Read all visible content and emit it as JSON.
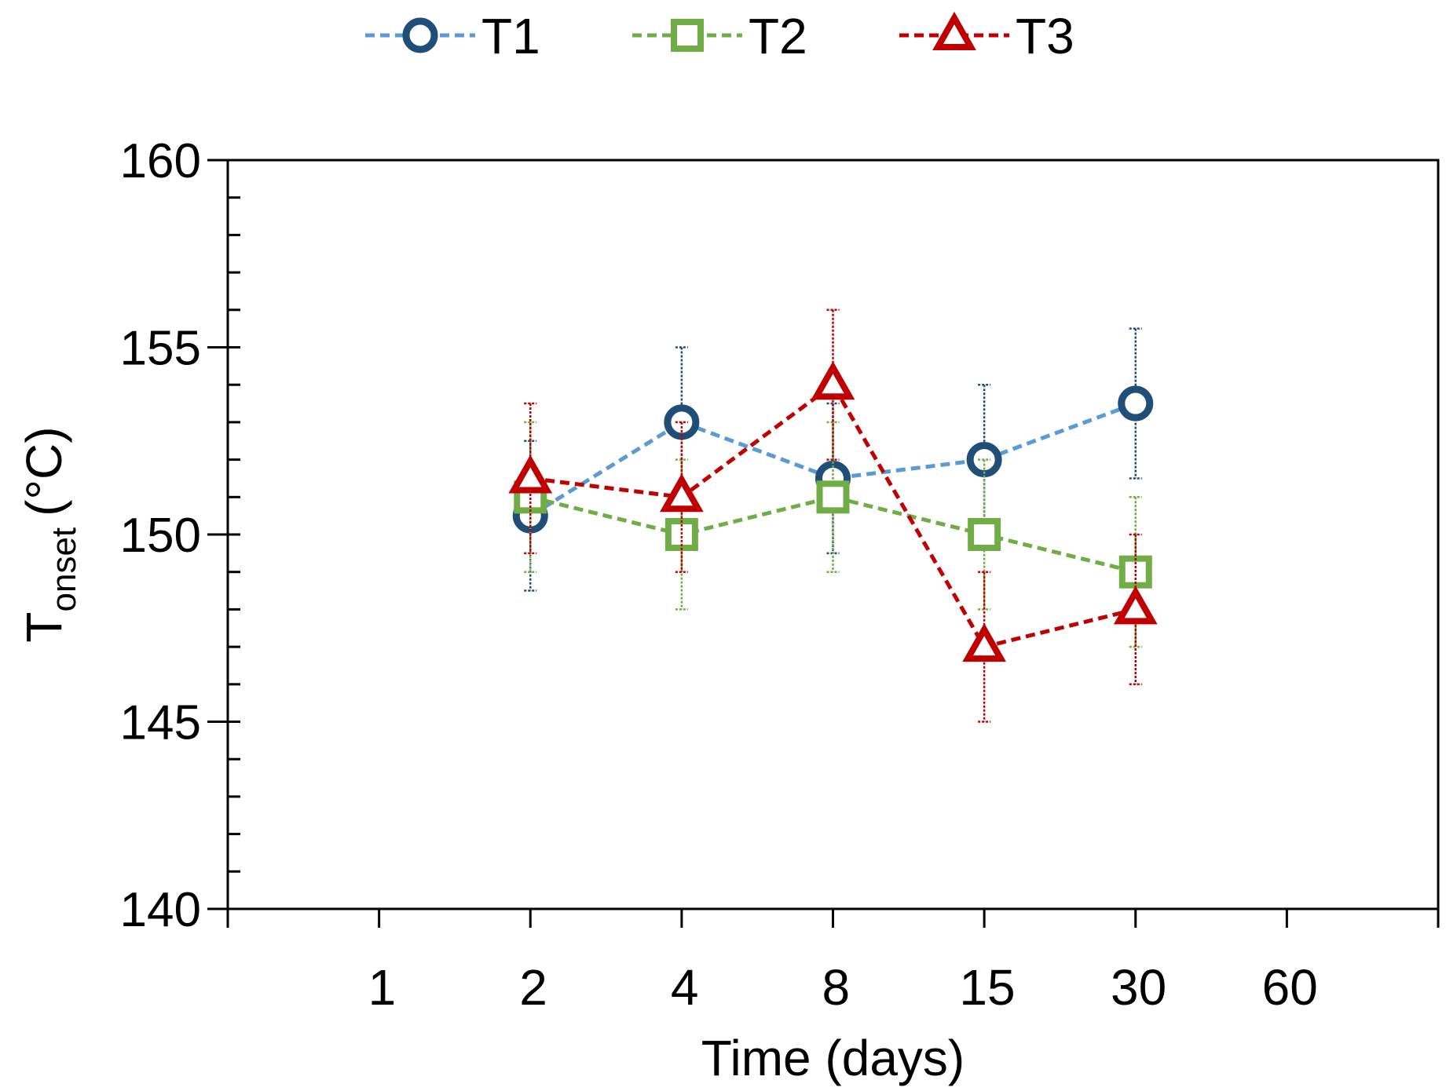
{
  "chart_data": {
    "type": "line",
    "title": "",
    "xlabel": "Time (days)",
    "ylabel": {
      "main": "T",
      "subscript": "onset",
      "unit": "(°C)"
    },
    "categories": [
      "1",
      "2",
      "4",
      "8",
      "15",
      "30",
      "60"
    ],
    "ylim": [
      140,
      160
    ],
    "y_major_ticks": [
      140,
      145,
      150,
      155,
      160
    ],
    "y_minor_step": 1,
    "grid": false,
    "legend_position": "top-center",
    "series": [
      {
        "name": "T1",
        "marker": "circle",
        "line_color": "#5B9BD5",
        "marker_color": "#1F4E79",
        "error_color": "#1F4E79",
        "values": [
          null,
          150.5,
          153.0,
          151.5,
          152.0,
          153.5,
          null
        ],
        "errors": [
          null,
          2.0,
          2.0,
          2.0,
          2.0,
          2.0,
          null
        ]
      },
      {
        "name": "T2",
        "marker": "square",
        "line_color": "#70AD47",
        "marker_color": "#70AD47",
        "error_color": "#70AD47",
        "values": [
          null,
          151.0,
          150.0,
          151.0,
          150.0,
          149.0,
          null
        ],
        "errors": [
          null,
          2.0,
          2.0,
          2.0,
          2.0,
          2.0,
          null
        ]
      },
      {
        "name": "T3",
        "marker": "triangle",
        "line_color": "#C00000",
        "marker_color": "#C00000",
        "error_color": "#C00000",
        "values": [
          null,
          151.5,
          151.0,
          154.0,
          147.0,
          148.0,
          null
        ],
        "errors": [
          null,
          2.0,
          2.0,
          2.0,
          2.0,
          2.0,
          null
        ]
      }
    ]
  }
}
